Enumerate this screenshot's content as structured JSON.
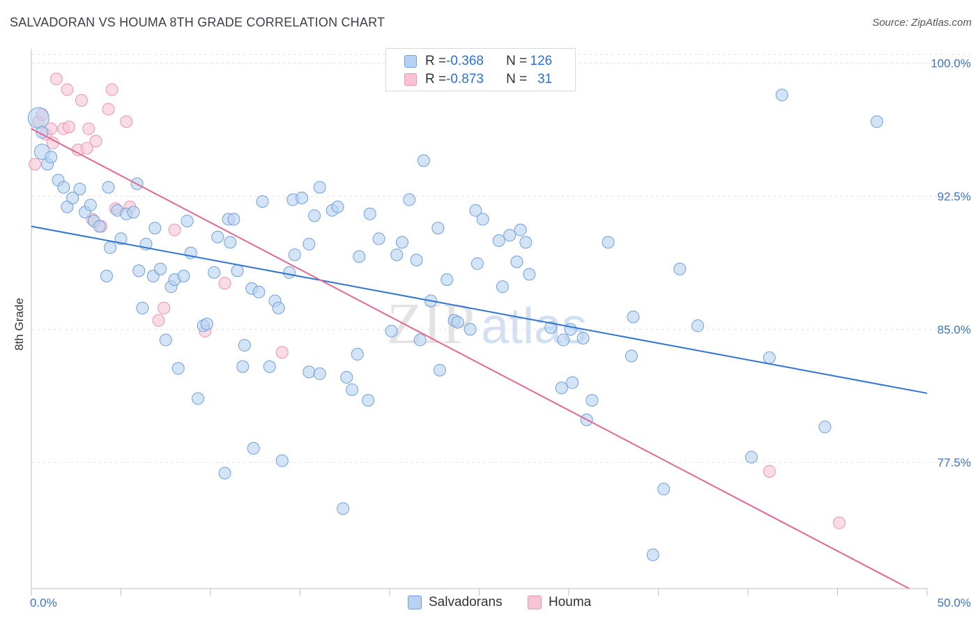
{
  "header": {
    "title": "SALVADORAN VS HOUMA 8TH GRADE CORRELATION CHART",
    "source": "Source: ZipAtlas.com"
  },
  "legend": {
    "rows": [
      {
        "r_label": "R = ",
        "r_value": "-0.368",
        "n_label": "N = ",
        "n_value": "126"
      },
      {
        "r_label": "R = ",
        "r_value": "-0.873",
        "n_label": "N = ",
        "n_value": "31"
      }
    ]
  },
  "bottom_legend": {
    "series1": "Salvadorans",
    "series2": "Houma"
  },
  "watermark": {
    "zip": "ZIP",
    "atlas": "atlas"
  },
  "colors": {
    "blue_fill": "#b8d2f2",
    "blue_stroke": "#6e9fdd",
    "blue_line": "#2f74d0",
    "pink_fill": "#f8c4d4",
    "pink_stroke": "#ec93b0",
    "pink_line": "#e26892",
    "grid": "#e2e2e2",
    "tick_text": "#3b74c4"
  },
  "chart_data": {
    "type": "scatter",
    "title": "SALVADORAN VS HOUMA 8TH GRADE CORRELATION CHART",
    "xlabel": "",
    "ylabel": "8th Grade",
    "xlim": [
      0,
      50
    ],
    "ylim": [
      70.4,
      100.8
    ],
    "x_tick_labels": [
      "0.0%",
      "50.0%"
    ],
    "y_ticks": [
      77.5,
      85.0,
      92.5,
      100.0
    ],
    "y_tick_labels": [
      "77.5%",
      "85.0%",
      "92.5%",
      "100.0%"
    ],
    "grid": true,
    "legend_position": "top-center",
    "series": [
      {
        "name": "Salvadorans",
        "r": -0.368,
        "n": 126,
        "trend": {
          "x": [
            0,
            50
          ],
          "y": [
            90.8,
            81.4
          ]
        },
        "points": [
          [
            0.4,
            96.9
          ],
          [
            0.6,
            96.1
          ],
          [
            0.6,
            95.0
          ],
          [
            0.9,
            94.3
          ],
          [
            1.1,
            94.7
          ],
          [
            1.5,
            93.4
          ],
          [
            1.8,
            93.0
          ],
          [
            2.0,
            91.9
          ],
          [
            2.3,
            92.4
          ],
          [
            2.7,
            92.9
          ],
          [
            3.0,
            91.6
          ],
          [
            3.3,
            92.0
          ],
          [
            3.5,
            91.1
          ],
          [
            3.8,
            90.8
          ],
          [
            4.2,
            88.0
          ],
          [
            4.3,
            93.0
          ],
          [
            4.4,
            89.6
          ],
          [
            4.8,
            91.7
          ],
          [
            5.3,
            91.5
          ],
          [
            5.0,
            90.1
          ],
          [
            5.7,
            91.6
          ],
          [
            6.0,
            88.3
          ],
          [
            5.9,
            93.2
          ],
          [
            6.2,
            86.2
          ],
          [
            6.4,
            89.8
          ],
          [
            6.8,
            88.0
          ],
          [
            6.9,
            90.7
          ],
          [
            7.2,
            88.4
          ],
          [
            7.5,
            84.4
          ],
          [
            7.8,
            87.4
          ],
          [
            8.0,
            87.8
          ],
          [
            8.2,
            82.8
          ],
          [
            8.5,
            88.0
          ],
          [
            8.7,
            91.1
          ],
          [
            8.9,
            89.3
          ],
          [
            9.3,
            81.1
          ],
          [
            9.6,
            85.2
          ],
          [
            9.8,
            85.3
          ],
          [
            10.2,
            88.2
          ],
          [
            10.4,
            90.2
          ],
          [
            10.8,
            76.9
          ],
          [
            11.0,
            91.2
          ],
          [
            11.1,
            89.9
          ],
          [
            11.3,
            91.2
          ],
          [
            11.5,
            88.3
          ],
          [
            11.8,
            82.9
          ],
          [
            11.9,
            84.1
          ],
          [
            12.3,
            87.3
          ],
          [
            12.4,
            78.3
          ],
          [
            12.7,
            87.1
          ],
          [
            12.9,
            92.2
          ],
          [
            13.3,
            82.9
          ],
          [
            13.6,
            86.6
          ],
          [
            13.8,
            86.2
          ],
          [
            14.0,
            77.6
          ],
          [
            14.4,
            88.2
          ],
          [
            14.6,
            92.3
          ],
          [
            14.7,
            89.2
          ],
          [
            15.1,
            92.4
          ],
          [
            15.5,
            82.6
          ],
          [
            15.5,
            89.8
          ],
          [
            15.8,
            91.4
          ],
          [
            16.1,
            82.5
          ],
          [
            16.1,
            93.0
          ],
          [
            16.8,
            91.7
          ],
          [
            17.1,
            91.9
          ],
          [
            17.4,
            74.9
          ],
          [
            17.6,
            82.3
          ],
          [
            17.9,
            81.6
          ],
          [
            18.2,
            83.6
          ],
          [
            18.3,
            89.1
          ],
          [
            18.8,
            81.0
          ],
          [
            18.9,
            91.5
          ],
          [
            19.4,
            90.1
          ],
          [
            20.1,
            84.9
          ],
          [
            20.4,
            89.2
          ],
          [
            20.7,
            89.9
          ],
          [
            21.1,
            92.3
          ],
          [
            21.5,
            88.9
          ],
          [
            21.7,
            84.4
          ],
          [
            21.9,
            94.5
          ],
          [
            22.3,
            86.6
          ],
          [
            22.7,
            90.7
          ],
          [
            22.8,
            82.7
          ],
          [
            23.2,
            87.8
          ],
          [
            23.6,
            85.5
          ],
          [
            23.8,
            85.4
          ],
          [
            24.5,
            85.0
          ],
          [
            24.8,
            91.7
          ],
          [
            24.9,
            88.7
          ],
          [
            25.2,
            91.2
          ],
          [
            26.3,
            87.4
          ],
          [
            26.1,
            90.0
          ],
          [
            26.7,
            90.3
          ],
          [
            27.1,
            88.8
          ],
          [
            27.3,
            90.6
          ],
          [
            27.6,
            89.9
          ],
          [
            27.8,
            88.1
          ],
          [
            29.0,
            85.1
          ],
          [
            29.6,
            81.7
          ],
          [
            29.7,
            84.4
          ],
          [
            30.1,
            85.0
          ],
          [
            30.2,
            82.0
          ],
          [
            30.8,
            84.5
          ],
          [
            31.0,
            79.9
          ],
          [
            31.3,
            81.0
          ],
          [
            32.2,
            89.9
          ],
          [
            33.5,
            83.5
          ],
          [
            33.6,
            85.7
          ],
          [
            34.7,
            72.3
          ],
          [
            35.3,
            76.0
          ],
          [
            36.2,
            88.4
          ],
          [
            37.2,
            85.2
          ],
          [
            40.2,
            77.8
          ],
          [
            41.2,
            83.4
          ],
          [
            41.9,
            98.2
          ],
          [
            44.3,
            79.5
          ],
          [
            47.2,
            96.7
          ]
        ]
      },
      {
        "name": "Houma",
        "r": -0.873,
        "n": 31,
        "trend": {
          "x": [
            0,
            49
          ],
          "y": [
            96.3,
            70.4
          ]
        },
        "points": [
          [
            0.2,
            94.3
          ],
          [
            0.4,
            96.7
          ],
          [
            0.6,
            97.1
          ],
          [
            0.8,
            96.0
          ],
          [
            1.1,
            96.3
          ],
          [
            1.2,
            95.5
          ],
          [
            1.4,
            99.1
          ],
          [
            1.8,
            96.3
          ],
          [
            2.1,
            96.4
          ],
          [
            2.0,
            98.5
          ],
          [
            2.6,
            95.1
          ],
          [
            2.8,
            97.9
          ],
          [
            3.2,
            96.3
          ],
          [
            3.1,
            95.2
          ],
          [
            3.4,
            91.2
          ],
          [
            3.6,
            95.6
          ],
          [
            3.9,
            90.8
          ],
          [
            4.3,
            97.4
          ],
          [
            4.5,
            98.5
          ],
          [
            4.7,
            91.8
          ],
          [
            5.3,
            96.7
          ],
          [
            5.5,
            91.9
          ],
          [
            7.1,
            85.5
          ],
          [
            7.4,
            86.2
          ],
          [
            8.0,
            90.6
          ],
          [
            9.7,
            84.9
          ],
          [
            10.8,
            87.6
          ],
          [
            14.0,
            83.7
          ],
          [
            41.2,
            77.0
          ],
          [
            45.1,
            74.1
          ]
        ]
      }
    ]
  }
}
